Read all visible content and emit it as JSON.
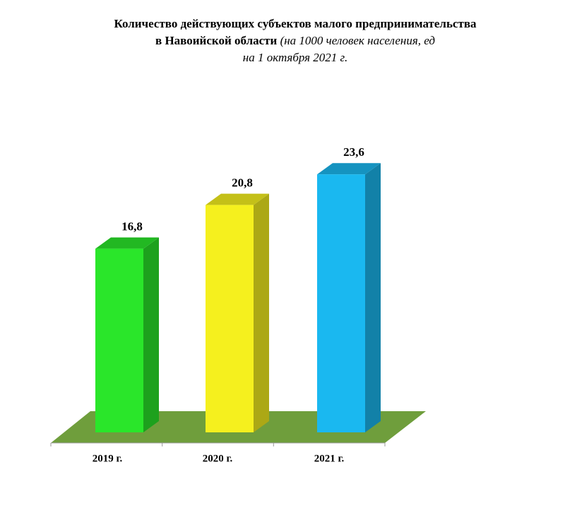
{
  "chart_data": {
    "type": "bar3d",
    "title": [
      "Количество действующих субъектов малого предпринимательства",
      "в Навоийской области",
      "(на 1000 человек населения, ед",
      "на 1 октября 2021 г."
    ],
    "categories": [
      "2019 г.",
      "2020 г.",
      "2021 г."
    ],
    "values": [
      16.8,
      20.8,
      23.6
    ],
    "value_labels": [
      "16,8",
      "20,8",
      "23,6"
    ],
    "colors": [
      "#2ae62a",
      "#f5f01e",
      "#1ab8f0"
    ],
    "floor_color": "#6f9e3c"
  }
}
